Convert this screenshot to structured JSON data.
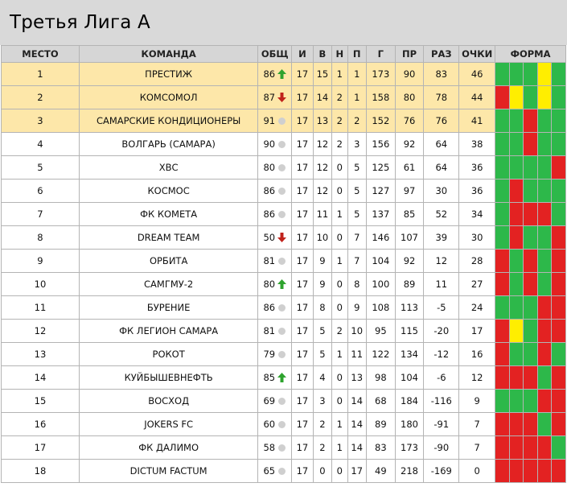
{
  "title": "Третья Лига А",
  "headers": {
    "place": "МЕСТО",
    "team": "КОМАНДА",
    "overall": "ОБЩ",
    "played": "И",
    "won": "В",
    "drawn": "Н",
    "lost": "П",
    "goals_for": "Г",
    "goals_against": "ПР",
    "diff": "РАЗ",
    "points": "ОЧКИ",
    "form": "ФОРМА"
  },
  "colors": {
    "win": "#2db84a",
    "loss": "#e32222",
    "draw": "#ffee00",
    "promo_bg": "#fde7a9",
    "arrow_up": "#2ea32e",
    "arrow_down": "#c0221c",
    "neutral": "#cfcfcf"
  },
  "rows": [
    {
      "place": "1",
      "team": "ПРЕСТИЖ",
      "overall": "86",
      "trend": "up",
      "played": "17",
      "won": "15",
      "drawn": "1",
      "lost": "1",
      "gf": "173",
      "ga": "90",
      "diff": "83",
      "pts": "46",
      "form": [
        "W",
        "W",
        "W",
        "D",
        "W"
      ],
      "promo": true
    },
    {
      "place": "2",
      "team": "КОМСОМОЛ",
      "overall": "87",
      "trend": "down",
      "played": "17",
      "won": "14",
      "drawn": "2",
      "lost": "1",
      "gf": "158",
      "ga": "80",
      "diff": "78",
      "pts": "44",
      "form": [
        "L",
        "D",
        "W",
        "D",
        "W"
      ],
      "promo": true
    },
    {
      "place": "3",
      "team": "САМАРСКИЕ КОНДИЦИОНЕРЫ",
      "overall": "91",
      "trend": "none",
      "played": "17",
      "won": "13",
      "drawn": "2",
      "lost": "2",
      "gf": "152",
      "ga": "76",
      "diff": "76",
      "pts": "41",
      "form": [
        "W",
        "W",
        "L",
        "W",
        "W"
      ],
      "promo": true
    },
    {
      "place": "4",
      "team": "ВОЛГАРЬ (САМАРА)",
      "overall": "90",
      "trend": "none",
      "played": "17",
      "won": "12",
      "drawn": "2",
      "lost": "3",
      "gf": "156",
      "ga": "92",
      "diff": "64",
      "pts": "38",
      "form": [
        "W",
        "W",
        "L",
        "W",
        "W"
      ],
      "promo": false
    },
    {
      "place": "5",
      "team": "ХВС",
      "overall": "80",
      "trend": "none",
      "played": "17",
      "won": "12",
      "drawn": "0",
      "lost": "5",
      "gf": "125",
      "ga": "61",
      "diff": "64",
      "pts": "36",
      "form": [
        "W",
        "W",
        "W",
        "W",
        "L"
      ],
      "promo": false
    },
    {
      "place": "6",
      "team": "КОСМОС",
      "overall": "86",
      "trend": "none",
      "played": "17",
      "won": "12",
      "drawn": "0",
      "lost": "5",
      "gf": "127",
      "ga": "97",
      "diff": "30",
      "pts": "36",
      "form": [
        "W",
        "L",
        "W",
        "W",
        "W"
      ],
      "promo": false
    },
    {
      "place": "7",
      "team": "ФК КОМЕТА",
      "overall": "86",
      "trend": "none",
      "played": "17",
      "won": "11",
      "drawn": "1",
      "lost": "5",
      "gf": "137",
      "ga": "85",
      "diff": "52",
      "pts": "34",
      "form": [
        "W",
        "L",
        "L",
        "L",
        "W"
      ],
      "promo": false
    },
    {
      "place": "8",
      "team": "DREAM TEAM",
      "overall": "50",
      "trend": "down",
      "played": "17",
      "won": "10",
      "drawn": "0",
      "lost": "7",
      "gf": "146",
      "ga": "107",
      "diff": "39",
      "pts": "30",
      "form": [
        "W",
        "L",
        "W",
        "W",
        "L"
      ],
      "promo": false
    },
    {
      "place": "9",
      "team": "ОРБИТА",
      "overall": "81",
      "trend": "none",
      "played": "17",
      "won": "9",
      "drawn": "1",
      "lost": "7",
      "gf": "104",
      "ga": "92",
      "diff": "12",
      "pts": "28",
      "form": [
        "L",
        "W",
        "L",
        "W",
        "L"
      ],
      "promo": false
    },
    {
      "place": "10",
      "team": "САМГМУ-2",
      "overall": "80",
      "trend": "up",
      "played": "17",
      "won": "9",
      "drawn": "0",
      "lost": "8",
      "gf": "100",
      "ga": "89",
      "diff": "11",
      "pts": "27",
      "form": [
        "L",
        "W",
        "L",
        "W",
        "L"
      ],
      "promo": false
    },
    {
      "place": "11",
      "team": "БУРЕНИЕ",
      "overall": "86",
      "trend": "none",
      "played": "17",
      "won": "8",
      "drawn": "0",
      "lost": "9",
      "gf": "108",
      "ga": "113",
      "diff": "-5",
      "pts": "24",
      "form": [
        "W",
        "W",
        "W",
        "L",
        "L"
      ],
      "promo": false
    },
    {
      "place": "12",
      "team": "ФК ЛЕГИОН САМАРА",
      "overall": "81",
      "trend": "none",
      "played": "17",
      "won": "5",
      "drawn": "2",
      "lost": "10",
      "gf": "95",
      "ga": "115",
      "diff": "-20",
      "pts": "17",
      "form": [
        "L",
        "D",
        "W",
        "L",
        "L"
      ],
      "promo": false
    },
    {
      "place": "13",
      "team": "РОКОТ",
      "overall": "79",
      "trend": "none",
      "played": "17",
      "won": "5",
      "drawn": "1",
      "lost": "11",
      "gf": "122",
      "ga": "134",
      "diff": "-12",
      "pts": "16",
      "form": [
        "L",
        "W",
        "W",
        "L",
        "W"
      ],
      "promo": false
    },
    {
      "place": "14",
      "team": "КУЙБЫШЕВНЕФТЬ",
      "overall": "85",
      "trend": "up",
      "played": "17",
      "won": "4",
      "drawn": "0",
      "lost": "13",
      "gf": "98",
      "ga": "104",
      "diff": "-6",
      "pts": "12",
      "form": [
        "L",
        "L",
        "L",
        "W",
        "L"
      ],
      "promo": false
    },
    {
      "place": "15",
      "team": "ВОСХОД",
      "overall": "69",
      "trend": "none",
      "played": "17",
      "won": "3",
      "drawn": "0",
      "lost": "14",
      "gf": "68",
      "ga": "184",
      "diff": "-116",
      "pts": "9",
      "form": [
        "W",
        "W",
        "W",
        "L",
        "L"
      ],
      "promo": false
    },
    {
      "place": "16",
      "team": "JOKERS FC",
      "overall": "60",
      "trend": "none",
      "played": "17",
      "won": "2",
      "drawn": "1",
      "lost": "14",
      "gf": "89",
      "ga": "180",
      "diff": "-91",
      "pts": "7",
      "form": [
        "L",
        "L",
        "L",
        "W",
        "L"
      ],
      "promo": false
    },
    {
      "place": "17",
      "team": "ФК ДАЛИМО",
      "overall": "58",
      "trend": "none",
      "played": "17",
      "won": "2",
      "drawn": "1",
      "lost": "14",
      "gf": "83",
      "ga": "173",
      "diff": "-90",
      "pts": "7",
      "form": [
        "L",
        "L",
        "L",
        "L",
        "W"
      ],
      "promo": false
    },
    {
      "place": "18",
      "team": "DICTUM FACTUM",
      "overall": "65",
      "trend": "none",
      "played": "17",
      "won": "0",
      "drawn": "0",
      "lost": "17",
      "gf": "49",
      "ga": "218",
      "diff": "-169",
      "pts": "0",
      "form": [
        "L",
        "L",
        "L",
        "L",
        "L"
      ],
      "promo": false
    }
  ]
}
